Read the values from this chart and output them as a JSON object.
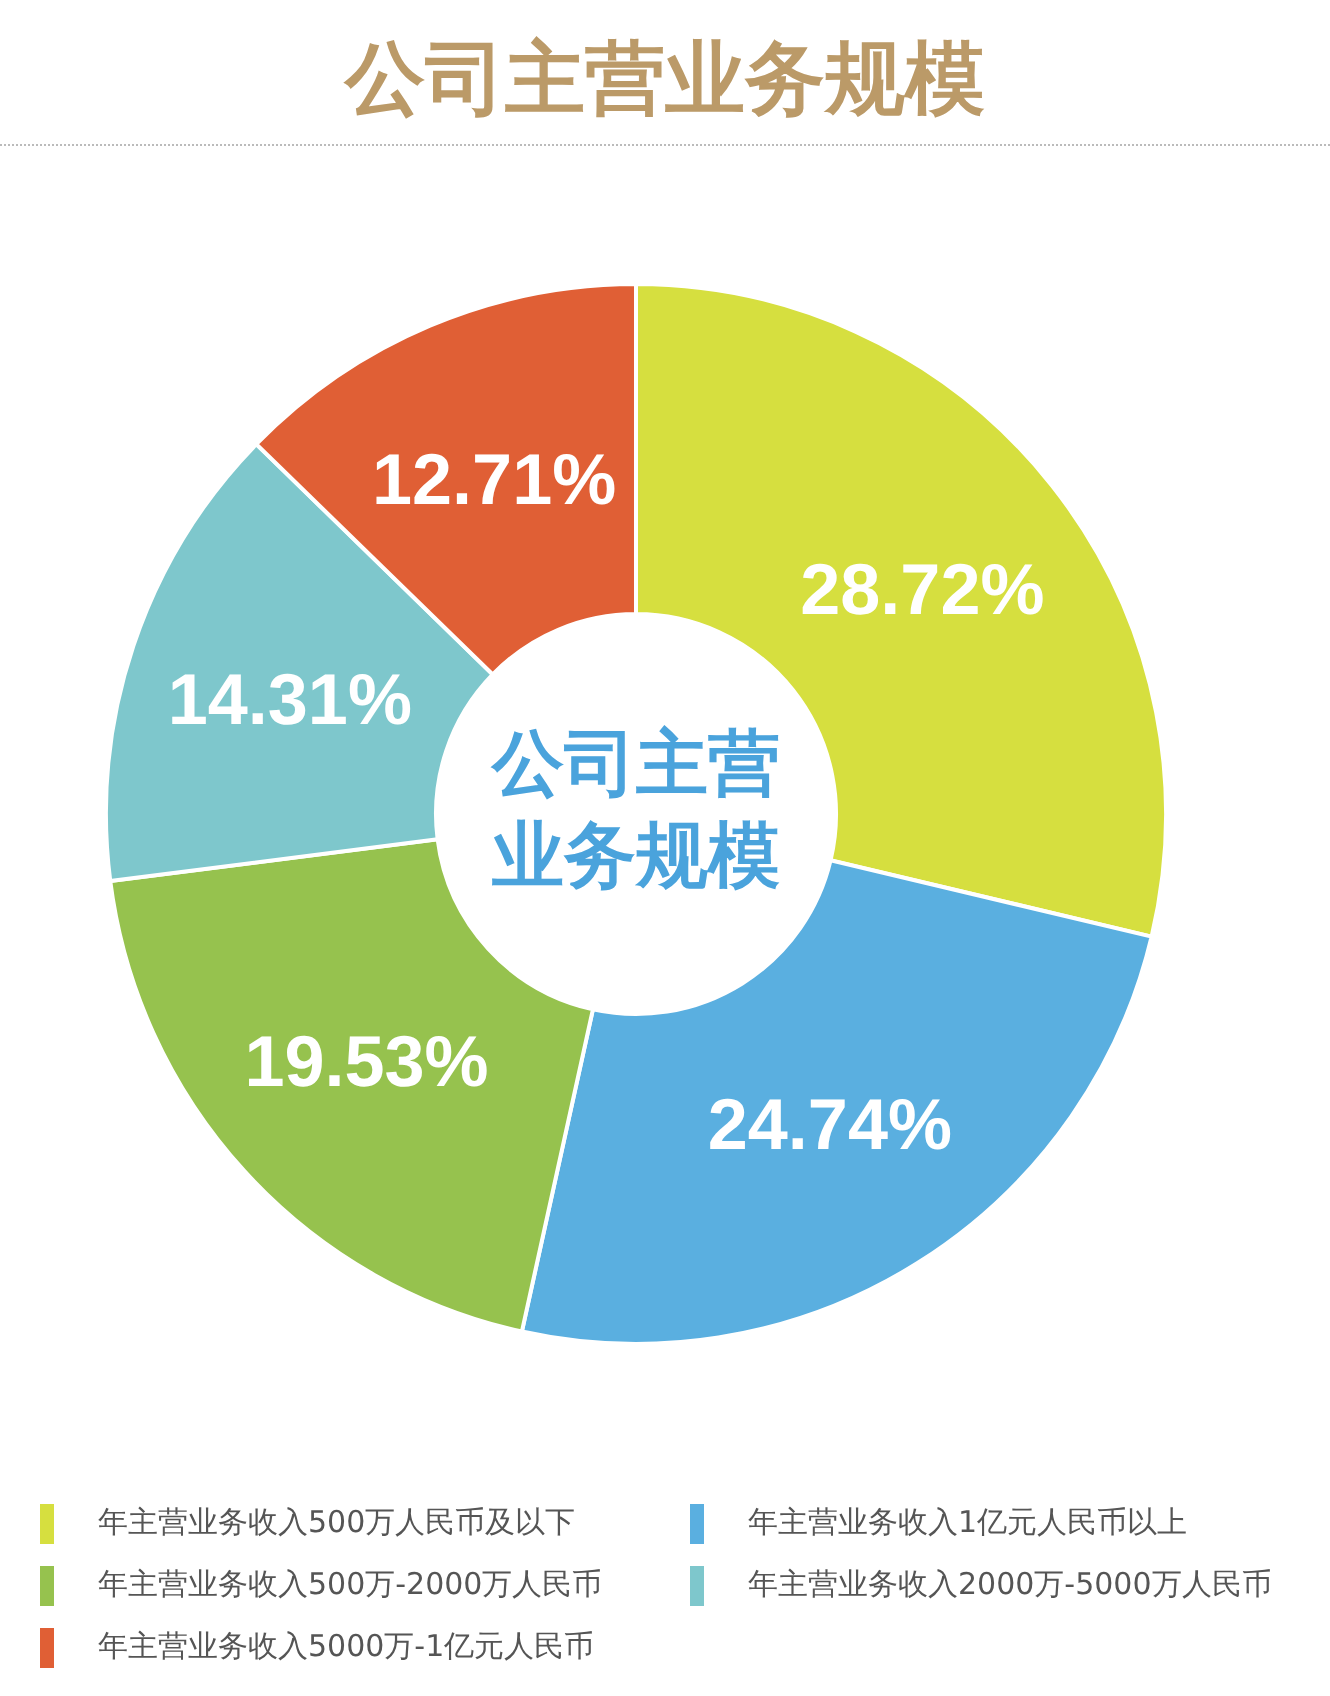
{
  "chart_data": {
    "type": "donut",
    "title": "公司主营业务规模",
    "categories": [
      "年主营业务收入500万人民币及以下",
      "年主营业务收入1亿元人民币以上",
      "年主营业务收入500万-2000万人民币",
      "年主营业务收入2000万-5000万人民币",
      "年主营业务收入5000万-1亿元人民币"
    ],
    "values": [
      28.72,
      24.74,
      19.53,
      14.31,
      12.71
    ],
    "colors": [
      "#d6df3f",
      "#5aafe0",
      "#96c24e",
      "#7ec7cc",
      "#e05f35"
    ],
    "value_labels": [
      "28.72%",
      "24.74%",
      "19.53%",
      "14.31%",
      "12.71%"
    ],
    "legend": "bottom",
    "annotations": [
      "公司主营业务规模"
    ]
  }
}
